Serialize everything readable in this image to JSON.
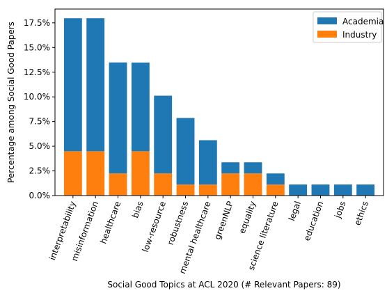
{
  "chart_data": {
    "type": "stacked_bar",
    "xlabel": "Social Good Topics at ACL 2020 (# Relevant Papers: 89)",
    "ylabel": "Percentage among Social Good Papers",
    "categories": [
      "interpretability",
      "misinformation",
      "healthcare",
      "bias",
      "low-resource",
      "robustness",
      "mental healthcare",
      "greenNLP",
      "equality",
      "science literature",
      "legal",
      "education",
      "jobs",
      "ethics"
    ],
    "series": [
      {
        "name": "Industry",
        "color": "#ff7f0e",
        "values": [
          4.49,
          4.49,
          2.25,
          4.49,
          2.25,
          1.12,
          1.12,
          2.25,
          2.25,
          1.12,
          0,
          0,
          0,
          0
        ]
      },
      {
        "name": "Academia",
        "color": "#1f77b4",
        "values": [
          13.48,
          13.48,
          11.24,
          8.99,
          7.87,
          6.74,
          4.49,
          1.12,
          1.12,
          1.12,
          1.12,
          1.12,
          1.12,
          1.12
        ]
      }
    ],
    "ylim": [
      0,
      18.9
    ],
    "yticks": [
      {
        "value": 0,
        "label": "0.0%"
      },
      {
        "value": 2.5,
        "label": "2.5%"
      },
      {
        "value": 5,
        "label": "5.0%"
      },
      {
        "value": 7.5,
        "label": "7.5%"
      },
      {
        "value": 10,
        "label": "10.0%"
      },
      {
        "value": 12.5,
        "label": "12.5%"
      },
      {
        "value": 15,
        "label": "15.0%"
      },
      {
        "value": 17.5,
        "label": "17.5%"
      }
    ],
    "legend": "upper right"
  }
}
